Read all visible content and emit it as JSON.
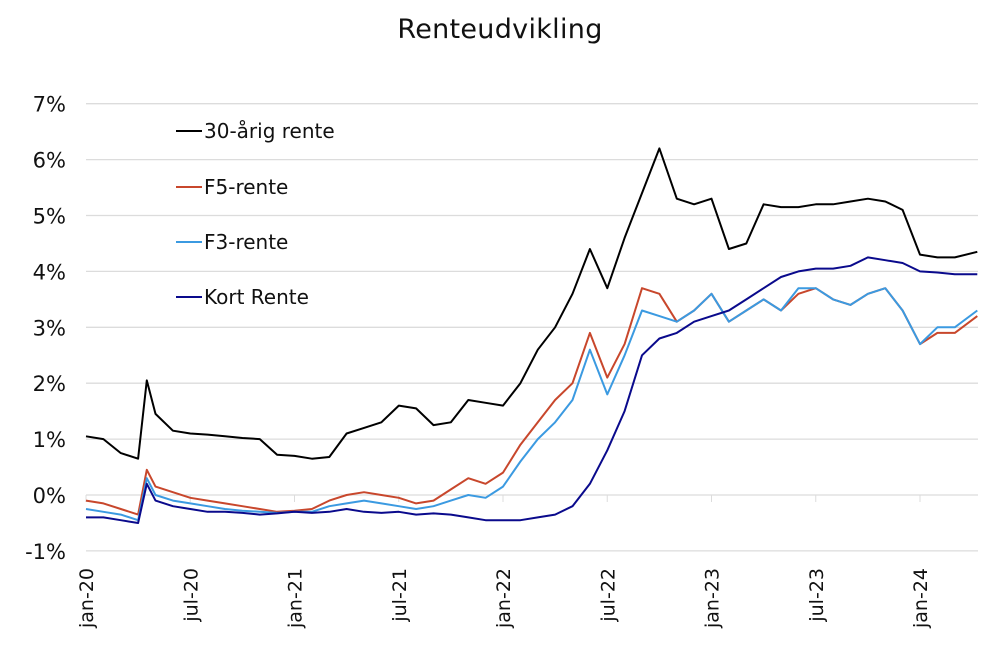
{
  "chart_data": {
    "type": "line",
    "title": "Renteudvikling",
    "xlabel": "",
    "ylabel": "",
    "ylim": [
      -1,
      7
    ],
    "yticks": [
      "-1%",
      "0%",
      "1%",
      "2%",
      "3%",
      "4%",
      "5%",
      "6%",
      "7%"
    ],
    "grid": true,
    "legend_position": "upper-left-inside",
    "x_tick_labels": [
      "jan-20",
      "jul-20",
      "jan-21",
      "jul-21",
      "jan-22",
      "jul-22",
      "jan-23",
      "jul-23",
      "jan-24"
    ],
    "x_months_from_jan20": [
      0,
      1,
      2,
      3,
      3.5,
      4,
      5,
      6,
      7,
      8,
      9,
      10,
      11,
      12,
      13,
      14,
      15,
      16,
      17,
      18,
      19,
      20,
      21,
      22,
      23,
      24,
      25,
      26,
      27,
      28,
      29,
      30,
      31,
      32,
      33,
      34,
      35,
      36,
      37,
      38,
      39,
      40,
      41,
      42,
      43,
      44,
      45,
      46,
      47,
      48,
      49,
      50,
      51.3
    ],
    "series": [
      {
        "name": "30-årig rente",
        "color": "#000000",
        "values": [
          1.05,
          1.0,
          0.75,
          0.65,
          2.05,
          1.45,
          1.15,
          1.1,
          1.08,
          1.05,
          1.02,
          1.0,
          0.72,
          0.7,
          0.65,
          0.68,
          1.1,
          1.2,
          1.3,
          1.6,
          1.55,
          1.25,
          1.3,
          1.7,
          1.65,
          1.6,
          2.0,
          2.6,
          3.0,
          3.6,
          4.4,
          3.7,
          4.6,
          5.4,
          6.2,
          5.3,
          5.2,
          5.3,
          4.4,
          4.5,
          5.2,
          5.15,
          5.15,
          5.2,
          5.2,
          5.25,
          5.3,
          5.25,
          5.1,
          4.3,
          4.25,
          4.25,
          4.35
        ]
      },
      {
        "name": "F5-rente",
        "color": "#c8472c",
        "values": [
          -0.1,
          -0.15,
          -0.25,
          -0.35,
          0.45,
          0.15,
          0.05,
          -0.05,
          -0.1,
          -0.15,
          -0.2,
          -0.25,
          -0.3,
          -0.28,
          -0.25,
          -0.1,
          0.0,
          0.05,
          0.0,
          -0.05,
          -0.15,
          -0.1,
          0.1,
          0.3,
          0.2,
          0.4,
          0.9,
          1.3,
          1.7,
          2.0,
          2.9,
          2.1,
          2.7,
          3.7,
          3.6,
          3.1,
          3.3,
          3.6,
          3.1,
          3.3,
          3.5,
          3.3,
          3.6,
          3.7,
          3.5,
          3.4,
          3.6,
          3.7,
          3.3,
          2.7,
          2.9,
          2.9,
          3.2
        ]
      },
      {
        "name": "F3-rente",
        "color": "#3b9ae1",
        "values": [
          -0.25,
          -0.3,
          -0.35,
          -0.45,
          0.3,
          0.0,
          -0.1,
          -0.15,
          -0.2,
          -0.25,
          -0.28,
          -0.3,
          -0.32,
          -0.3,
          -0.3,
          -0.2,
          -0.15,
          -0.1,
          -0.15,
          -0.2,
          -0.25,
          -0.2,
          -0.1,
          0.0,
          -0.05,
          0.15,
          0.6,
          1.0,
          1.3,
          1.7,
          2.6,
          1.8,
          2.5,
          3.3,
          3.2,
          3.1,
          3.3,
          3.6,
          3.1,
          3.3,
          3.5,
          3.3,
          3.7,
          3.7,
          3.5,
          3.4,
          3.6,
          3.7,
          3.3,
          2.7,
          3.0,
          3.0,
          3.3
        ]
      },
      {
        "name": "Kort Rente",
        "color": "#0a0a8c",
        "values": [
          -0.4,
          -0.4,
          -0.45,
          -0.5,
          0.2,
          -0.1,
          -0.2,
          -0.25,
          -0.3,
          -0.3,
          -0.32,
          -0.35,
          -0.33,
          -0.3,
          -0.32,
          -0.3,
          -0.25,
          -0.3,
          -0.32,
          -0.3,
          -0.35,
          -0.33,
          -0.35,
          -0.4,
          -0.45,
          -0.45,
          -0.45,
          -0.4,
          -0.35,
          -0.2,
          0.2,
          0.8,
          1.5,
          2.5,
          2.8,
          2.9,
          3.1,
          3.2,
          3.3,
          3.5,
          3.7,
          3.9,
          4.0,
          4.05,
          4.05,
          4.1,
          4.25,
          4.2,
          4.15,
          4.0,
          3.98,
          3.95,
          3.95
        ]
      }
    ]
  },
  "legend": {
    "items": [
      "30-årig rente",
      "F5-rente",
      "F3-rente",
      "Kort Rente"
    ]
  }
}
